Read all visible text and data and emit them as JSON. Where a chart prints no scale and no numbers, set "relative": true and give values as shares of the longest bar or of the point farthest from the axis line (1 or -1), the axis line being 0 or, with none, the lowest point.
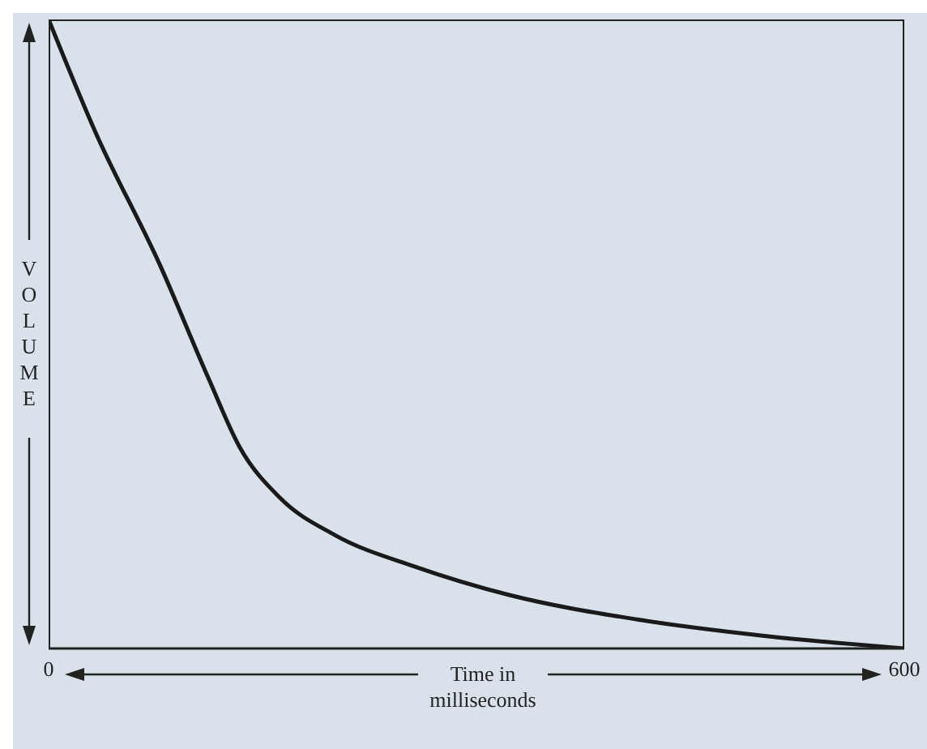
{
  "chart_data": {
    "type": "line",
    "xlabel": "Time in milliseconds",
    "ylabel": "VOLUME",
    "relative": true,
    "xlim": [
      0,
      600
    ],
    "xticks": [
      0,
      600
    ],
    "x": [
      0,
      33,
      78,
      112,
      134,
      162,
      201,
      257,
      323,
      413,
      502,
      600
    ],
    "series": [
      {
        "color": "#1a1a1a",
        "values": [
          1.0,
          0.82,
          0.61,
          0.43,
          0.32,
          0.24,
          0.18,
          0.13,
          0.085,
          0.046,
          0.02,
          0.0
        ]
      }
    ]
  }
}
